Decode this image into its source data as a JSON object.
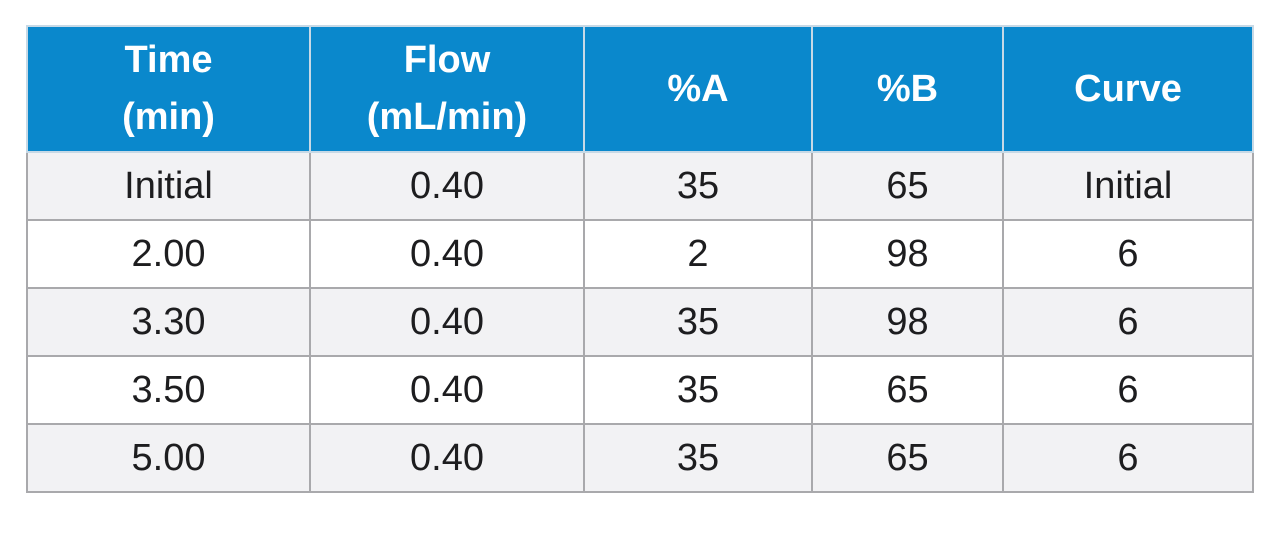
{
  "table": {
    "headers": [
      [
        "Time",
        "(min)"
      ],
      [
        "Flow",
        "(mL/min)"
      ],
      [
        "%A"
      ],
      [
        "%B"
      ],
      [
        "Curve"
      ]
    ],
    "rows": [
      [
        "Initial",
        "0.40",
        "35",
        "65",
        "Initial"
      ],
      [
        "2.00",
        "0.40",
        "2",
        "98",
        "6"
      ],
      [
        "3.30",
        "0.40",
        "35",
        "98",
        "6"
      ],
      [
        "3.50",
        "0.40",
        "35",
        "65",
        "6"
      ],
      [
        "5.00",
        "0.40",
        "35",
        "65",
        "6"
      ]
    ],
    "colors": {
      "header_background": "#0a88cc",
      "header_text": "#ffffff",
      "shaded_row": "#f2f2f4",
      "border": "#a9a9ac"
    }
  }
}
